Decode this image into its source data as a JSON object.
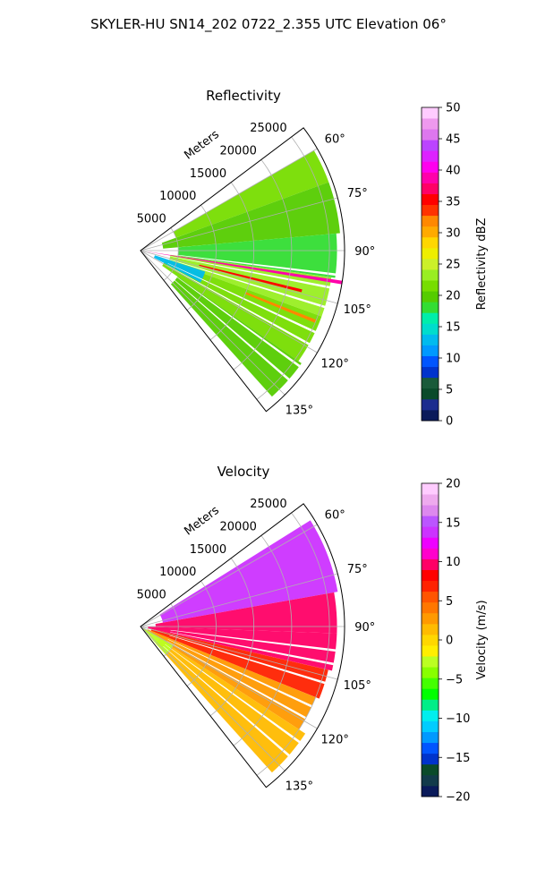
{
  "figure": {
    "suptitle": "SKYLER-HU  SN14_202  0722_2.355 UTC Elevation 06°"
  },
  "chart_data": [
    {
      "type": "heatmap",
      "subtype": "polar-sector-ppi",
      "title": "Reflectivity",
      "radial_label": "Meters",
      "r_tick_labels": [
        "5000",
        "10000",
        "15000",
        "20000",
        "25000"
      ],
      "r_ticks": [
        5000,
        10000,
        15000,
        20000,
        25000
      ],
      "r_max": 27000,
      "theta_tick_labels": [
        "60°",
        "75°",
        "90°",
        "105°",
        "120°",
        "135°"
      ],
      "theta_ticks": [
        60,
        75,
        90,
        105,
        120,
        135
      ],
      "theta_range": [
        53,
        142
      ],
      "grid": true,
      "colorbar": {
        "label": "Reflectivity dBZ",
        "range": [
          0,
          50
        ],
        "tick_labels": [
          "0",
          "5",
          "10",
          "15",
          "20",
          "25",
          "30",
          "35",
          "40",
          "45",
          "50"
        ],
        "ticks": [
          0,
          5,
          10,
          15,
          20,
          25,
          30,
          35,
          40,
          45,
          50
        ],
        "colors": [
          "#0a1a5a",
          "#1b2c8f",
          "#0a4a2a",
          "#1a5a3a",
          "#0033cc",
          "#0055ff",
          "#0099ff",
          "#00bbee",
          "#00ddcc",
          "#00eeaa",
          "#33dd33",
          "#55cc00",
          "#77dd00",
          "#99ee22",
          "#ccf02a",
          "#eeee00",
          "#ffd700",
          "#ffaa00",
          "#ff8800",
          "#ff3300",
          "#ff0000",
          "#ff0066",
          "#ff00aa",
          "#ff00ee",
          "#dd22ff",
          "#bb44ff",
          "#dd77ee",
          "#ee99ee",
          "#ffccff"
        ]
      },
      "echo_sectors": [
        {
          "theta": [
            60,
            70
          ],
          "r": [
            5000,
            26500
          ],
          "value": 22
        },
        {
          "theta": [
            70,
            85
          ],
          "r": [
            3000,
            26500
          ],
          "value": 20
        },
        {
          "theta": [
            85,
            98
          ],
          "r": [
            5000,
            26000
          ],
          "value": 18
        },
        {
          "theta": [
            98,
            110
          ],
          "r": [
            4000,
            25500
          ],
          "value": 23
        },
        {
          "theta": [
            110,
            125
          ],
          "r": [
            3500,
            25500
          ],
          "value": 21
        },
        {
          "theta": [
            125,
            138
          ],
          "r": [
            6000,
            26000
          ],
          "value": 19
        },
        {
          "theta": [
            108,
            118
          ],
          "r": [
            2000,
            9000
          ],
          "value": 13
        }
      ],
      "strong_rays": [
        {
          "theta": 99,
          "r": [
            1000,
            27000
          ],
          "value": 38
        },
        {
          "theta": 104,
          "r": [
            8000,
            22000
          ],
          "value": 36
        },
        {
          "theta": 112,
          "r": [
            15000,
            25000
          ],
          "value": 32
        }
      ],
      "gap_rays": [
        97,
        101,
        107,
        115,
        119,
        126,
        131
      ]
    },
    {
      "type": "heatmap",
      "subtype": "polar-sector-ppi",
      "title": "Velocity",
      "radial_label": "Meters",
      "r_tick_labels": [
        "5000",
        "10000",
        "15000",
        "20000",
        "25000"
      ],
      "r_ticks": [
        5000,
        10000,
        15000,
        20000,
        25000
      ],
      "r_max": 27000,
      "theta_tick_labels": [
        "60°",
        "75°",
        "90°",
        "105°",
        "120°",
        "135°"
      ],
      "theta_ticks": [
        60,
        75,
        90,
        105,
        120,
        135
      ],
      "theta_range": [
        53,
        142
      ],
      "grid": true,
      "colorbar": {
        "label": "Velocity (m/s)",
        "range": [
          -20,
          20
        ],
        "tick_labels": [
          "−20",
          "−15",
          "−10",
          "−5",
          "0",
          "5",
          "10",
          "15",
          "20"
        ],
        "ticks": [
          -20,
          -15,
          -10,
          -5,
          0,
          5,
          10,
          15,
          20
        ],
        "colors": [
          "#0a1a5a",
          "#123a4a",
          "#0a4a2a",
          "#0033cc",
          "#0055ff",
          "#0099ff",
          "#00ccff",
          "#00eeee",
          "#00ee88",
          "#00ff00",
          "#44ff00",
          "#88ff00",
          "#bbff22",
          "#ffee00",
          "#ffd700",
          "#ffbb00",
          "#ff9900",
          "#ff7700",
          "#ff5500",
          "#ff2200",
          "#ff0000",
          "#ff0066",
          "#ff00cc",
          "#ee00ff",
          "#cc33ff",
          "#bb55ff",
          "#dd88ee",
          "#eeaaee",
          "#ffccff"
        ]
      },
      "echo_sectors": [
        {
          "theta": [
            58,
            80
          ],
          "r": [
            3000,
            26500
          ],
          "value": 14
        },
        {
          "theta": [
            80,
            92
          ],
          "r": [
            2000,
            26000
          ],
          "value": 9
        },
        {
          "theta": [
            92,
            103
          ],
          "r": [
            1000,
            26000
          ],
          "value": 10
        },
        {
          "theta": [
            103,
            112
          ],
          "r": [
            1500,
            25500
          ],
          "value": 7
        },
        {
          "theta": [
            112,
            123
          ],
          "r": [
            1000,
            25000
          ],
          "value": 3
        },
        {
          "theta": [
            123,
            138
          ],
          "r": [
            3000,
            26000
          ],
          "value": 1
        },
        {
          "theta": [
            120,
            138
          ],
          "r": [
            500,
            5000
          ],
          "value": -3
        }
      ],
      "strong_rays": [],
      "gap_rays": [
        97,
        101,
        107,
        115,
        119,
        126,
        131
      ]
    }
  ]
}
